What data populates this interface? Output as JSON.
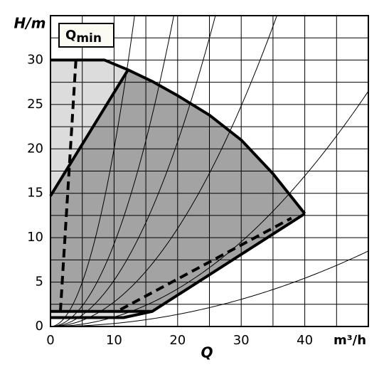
{
  "chart_data": {
    "type": "pump-curve",
    "y_label": "H/m",
    "x_label": "Q",
    "x_unit": "m³/h",
    "qmin_label": {
      "main": "Q",
      "sub": "min"
    },
    "xlim": [
      0,
      50
    ],
    "ylim": [
      0,
      35
    ],
    "xticks": [
      0,
      10,
      20,
      30,
      40
    ],
    "yticks": [
      0,
      5,
      10,
      15,
      20,
      25,
      30
    ],
    "xgrid": [
      5,
      10,
      15,
      20,
      25,
      30,
      35,
      40,
      45
    ],
    "ygrid": [
      2.5,
      5,
      7.5,
      10,
      12.5,
      15,
      17.5,
      20,
      22.5,
      25,
      27.5,
      30,
      32.5
    ],
    "fills": [
      {
        "color": "#dcdcdc",
        "x": [
          0,
          8.5,
          12.2,
          0
        ],
        "y": [
          30,
          30,
          28.9,
          14.7
        ]
      },
      {
        "color": "#dcdcdc",
        "x": [
          0,
          16,
          11.5,
          0
        ],
        "y": [
          1.7,
          1.7,
          1.0,
          1.0
        ]
      },
      {
        "color": "#a3a3a3",
        "x": [
          0,
          12.2,
          16,
          20,
          25,
          30,
          35,
          40,
          16,
          0
        ],
        "y": [
          14.7,
          28.9,
          27.6,
          26.0,
          23.8,
          21.0,
          17.2,
          12.7,
          1.7,
          1.7
        ]
      }
    ],
    "lines": [
      {
        "style": "solid",
        "x": [
          0,
          8.5,
          12.2,
          16,
          20,
          25,
          30,
          35,
          40
        ],
        "y": [
          30,
          30,
          28.9,
          27.6,
          26.0,
          23.8,
          21.0,
          17.2,
          12.7
        ]
      },
      {
        "style": "solid",
        "x": [
          0,
          12.2
        ],
        "y": [
          14.7,
          28.9
        ]
      },
      {
        "style": "solid",
        "x": [
          40,
          16,
          0
        ],
        "y": [
          12.7,
          1.7,
          1.7
        ]
      },
      {
        "style": "solid",
        "x": [
          0,
          11.5,
          16
        ],
        "y": [
          1.0,
          1.0,
          1.7
        ]
      },
      {
        "style": "dashed",
        "x": [
          4,
          1.5
        ],
        "y": [
          30,
          1.0
        ]
      },
      {
        "style": "dashed",
        "x": [
          11,
          37.9
        ],
        "y": [
          1.9,
          12.2
        ]
      }
    ],
    "system_curve_coefficients": [
      0.0034,
      0.0106,
      0.0276,
      0.052,
      0.093,
      0.2
    ]
  }
}
